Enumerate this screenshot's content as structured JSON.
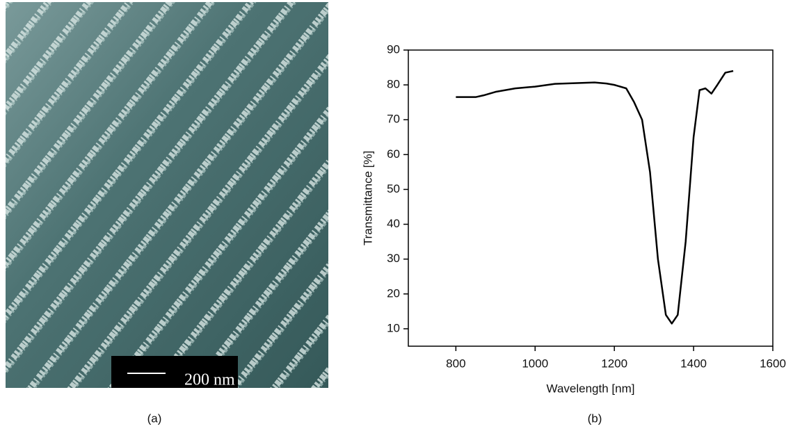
{
  "panels": {
    "a": {
      "label": "(a)",
      "scale_bar": "200 nm"
    },
    "b": {
      "label": "(b)"
    }
  },
  "chart_data": {
    "type": "line",
    "x_label": "Wavelength [nm]",
    "y_label": "Transmittance [%]",
    "x": [
      800,
      850,
      870,
      900,
      950,
      1000,
      1050,
      1100,
      1150,
      1180,
      1200,
      1230,
      1250,
      1270,
      1290,
      1310,
      1330,
      1345,
      1360,
      1380,
      1400,
      1415,
      1430,
      1445,
      1460,
      1480,
      1500
    ],
    "series": [
      {
        "color": "#000000",
        "values": [
          76.5,
          76.5,
          77,
          78,
          79,
          79.5,
          80.3,
          80.5,
          80.7,
          80.4,
          80,
          79,
          75,
          70,
          55,
          30,
          14,
          11.5,
          14,
          35,
          65,
          78.5,
          79,
          77.5,
          80,
          83.5,
          84
        ]
      }
    ],
    "xlim": [
      680,
      1600
    ],
    "ylim": [
      5,
      90
    ],
    "xticks": [
      800,
      1000,
      1200,
      1400,
      1600
    ],
    "yticks": [
      10,
      20,
      30,
      40,
      50,
      60,
      70,
      80,
      90
    ]
  }
}
